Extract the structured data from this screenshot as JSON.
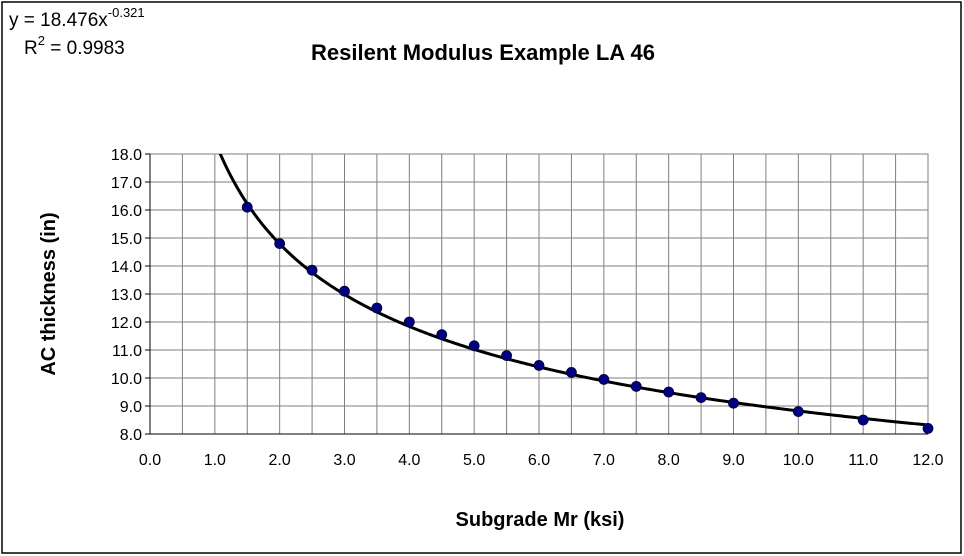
{
  "chart_data": {
    "type": "scatter",
    "title": "Resilent Modulus Example LA 46",
    "x_label": "Subgrade Mr (ksi)",
    "y_label": "AC thickness (in)",
    "series": [
      {
        "color": "#000080",
        "x": [
          1.5,
          2.0,
          2.5,
          3.0,
          3.5,
          4.0,
          4.5,
          5.0,
          5.5,
          6.0,
          6.5,
          7.0,
          7.5,
          8.0,
          8.5,
          9.0,
          10.0,
          11.0,
          12.0
        ],
        "values": [
          16.1,
          14.8,
          13.85,
          13.1,
          12.5,
          12.0,
          11.55,
          11.15,
          10.8,
          10.45,
          10.2,
          9.95,
          9.7,
          9.5,
          9.3,
          9.1,
          8.8,
          8.5,
          8.2
        ]
      }
    ],
    "trendline": {
      "color": "#000000",
      "coefficient": 18.476,
      "exponent": -0.321,
      "r_squared": 0.9983,
      "equation_label": [
        "y = 18.476x",
        "-0.321"
      ],
      "r_squared_label": [
        "R",
        "2",
        " = 0.9983"
      ]
    },
    "xlim": [
      0,
      12
    ],
    "ylim": [
      8,
      18
    ],
    "xticks": [
      {
        "value": 0,
        "label": "0.0"
      },
      {
        "value": 1,
        "label": "1.0"
      },
      {
        "value": 2,
        "label": "2.0"
      },
      {
        "value": 3,
        "label": "3.0"
      },
      {
        "value": 4,
        "label": "4.0"
      },
      {
        "value": 5,
        "label": "5.0"
      },
      {
        "value": 6,
        "label": "6.0"
      },
      {
        "value": 7,
        "label": "7.0"
      },
      {
        "value": 8,
        "label": "8.0"
      },
      {
        "value": 9,
        "label": "9.0"
      },
      {
        "value": 10,
        "label": "10.0"
      },
      {
        "value": 11,
        "label": "11.0"
      },
      {
        "value": 12,
        "label": "12.0"
      }
    ],
    "xgrid": [
      0,
      0.5,
      1,
      1.5,
      2,
      2.5,
      3,
      3.5,
      4,
      4.5,
      5,
      5.5,
      6,
      6.5,
      7,
      7.5,
      8,
      8.5,
      9,
      9.5,
      10,
      10.5,
      11,
      11.5,
      12
    ],
    "yticks": [
      {
        "value": 8,
        "label": "8.0"
      },
      {
        "value": 9,
        "label": "9.0"
      },
      {
        "value": 10,
        "label": "10.0"
      },
      {
        "value": 11,
        "label": "11.0"
      },
      {
        "value": 12,
        "label": "12.0"
      },
      {
        "value": 13,
        "label": "13.0"
      },
      {
        "value": 14,
        "label": "14.0"
      },
      {
        "value": 15,
        "label": "15.0"
      },
      {
        "value": 16,
        "label": "16.0"
      },
      {
        "value": 17,
        "label": "17.0"
      },
      {
        "value": 18,
        "label": "18.0"
      }
    ],
    "grid": true
  }
}
